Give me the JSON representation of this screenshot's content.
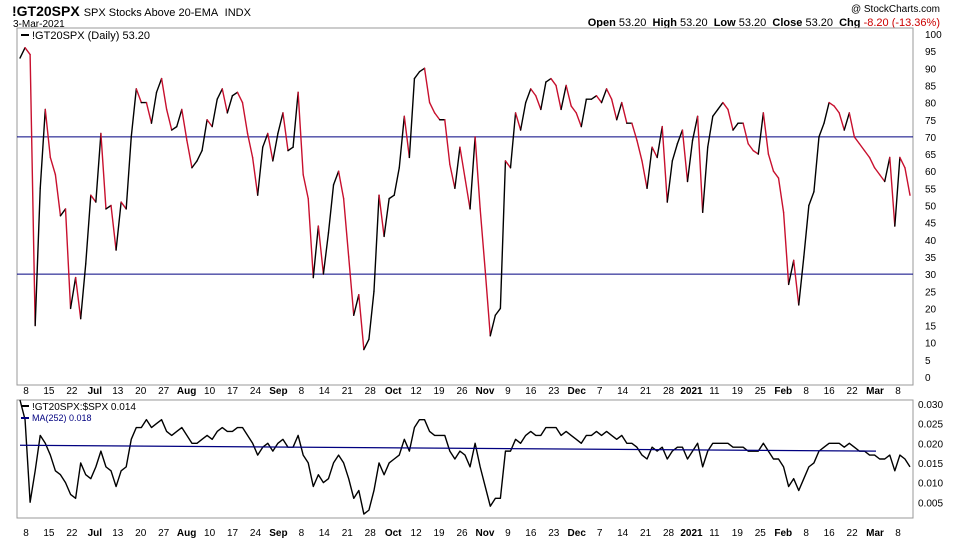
{
  "header": {
    "symbol": "!GT20SPX",
    "description": "SPX Stocks Above 20-EMA",
    "exchange": "INDX",
    "date": "3-Mar-2021",
    "copyright": "@ StockCharts.com",
    "open_label": "Open",
    "open_value": "53.20",
    "high_label": "High",
    "high_value": "53.20",
    "low_label": "Low",
    "low_value": "53.20",
    "close_label": "Close",
    "close_value": "53.20",
    "chg_label": "Chg",
    "chg_value": "-8.20 (-13.36%)",
    "chg_color": "#cc0000"
  },
  "chart_data": [
    {
      "type": "line",
      "legend": "!GT20SPX (Daily) 53.20",
      "ylim": [
        0,
        100
      ],
      "yticks": [
        0,
        5,
        10,
        15,
        20,
        25,
        30,
        35,
        40,
        45,
        50,
        55,
        60,
        65,
        70,
        75,
        80,
        85,
        90,
        95,
        100
      ],
      "reference_lines": [
        70,
        30
      ],
      "colors": {
        "up": "#000000",
        "down": "#c8102e",
        "reference": "#000080"
      },
      "x_tick_labels": [
        "8",
        "15",
        "22",
        "Jul",
        "13",
        "20",
        "27",
        "Aug",
        "10",
        "17",
        "24",
        "Sep",
        "8",
        "14",
        "21",
        "28",
        "Oct",
        "12",
        "19",
        "26",
        "Nov",
        "9",
        "16",
        "23",
        "Dec",
        "7",
        "14",
        "21",
        "28",
        "2021",
        "11",
        "19",
        "25",
        "Feb",
        "8",
        "16",
        "22",
        "Mar",
        "8"
      ],
      "x_label_bold": [
        "Jul",
        "Aug",
        "Sep",
        "Oct",
        "Nov",
        "Dec",
        "2021",
        "Feb",
        "Mar"
      ],
      "values": [
        93,
        96,
        94,
        15,
        55,
        78,
        64,
        59,
        47,
        49,
        20,
        29,
        17,
        33,
        53,
        51,
        71,
        49,
        50,
        37,
        51,
        49,
        70,
        84,
        80,
        80,
        74,
        83,
        87,
        78,
        72,
        73,
        78,
        69,
        61,
        63,
        66,
        75,
        73,
        81,
        84,
        77,
        82,
        83,
        80,
        71,
        64,
        53,
        67,
        71,
        63,
        71,
        77,
        66,
        67,
        83,
        59,
        52,
        29,
        44,
        30,
        42,
        56,
        60,
        52,
        35,
        18,
        24,
        8,
        11,
        25,
        53,
        41,
        52,
        53,
        61,
        76,
        64,
        87,
        89,
        90,
        80,
        77,
        75,
        75,
        62,
        55,
        67,
        58,
        49,
        70,
        49,
        31,
        12,
        18,
        20,
        63,
        61,
        77,
        72,
        80,
        84,
        82,
        78,
        86,
        87,
        85,
        78,
        85,
        79,
        77,
        73,
        81,
        81,
        82,
        80,
        84,
        81,
        75,
        80,
        74,
        74,
        69,
        63,
        55,
        67,
        64,
        73,
        51,
        63,
        68,
        72,
        57,
        69,
        76,
        48,
        67,
        76,
        78,
        80,
        78,
        72,
        74,
        74,
        68,
        66,
        65,
        77,
        65,
        60,
        58,
        48,
        27,
        34,
        21,
        35,
        50,
        54,
        70,
        74,
        80,
        79,
        77,
        72,
        77,
        70,
        68,
        66,
        64,
        61,
        59,
        57,
        64,
        44,
        64,
        61,
        53
      ]
    },
    {
      "type": "line",
      "series": [
        {
          "name": "!GT20SPX:$SPX 0.014",
          "color": "#000000",
          "values": [
            0.031,
            0.026,
            0.005,
            0.013,
            0.022,
            0.02,
            0.017,
            0.013,
            0.012,
            0.01,
            0.007,
            0.006,
            0.015,
            0.012,
            0.011,
            0.014,
            0.018,
            0.014,
            0.013,
            0.009,
            0.013,
            0.014,
            0.021,
            0.024,
            0.024,
            0.026,
            0.024,
            0.025,
            0.026,
            0.023,
            0.022,
            0.023,
            0.024,
            0.022,
            0.02,
            0.02,
            0.021,
            0.022,
            0.021,
            0.023,
            0.024,
            0.023,
            0.023,
            0.024,
            0.024,
            0.022,
            0.02,
            0.017,
            0.019,
            0.02,
            0.018,
            0.02,
            0.021,
            0.019,
            0.019,
            0.022,
            0.017,
            0.015,
            0.009,
            0.012,
            0.01,
            0.011,
            0.015,
            0.017,
            0.015,
            0.011,
            0.006,
            0.008,
            0.002,
            0.003,
            0.008,
            0.015,
            0.012,
            0.015,
            0.016,
            0.017,
            0.021,
            0.018,
            0.024,
            0.026,
            0.026,
            0.023,
            0.022,
            0.022,
            0.022,
            0.018,
            0.016,
            0.018,
            0.017,
            0.014,
            0.02,
            0.014,
            0.009,
            0.004,
            0.006,
            0.006,
            0.018,
            0.018,
            0.021,
            0.02,
            0.022,
            0.023,
            0.022,
            0.022,
            0.024,
            0.024,
            0.024,
            0.022,
            0.023,
            0.022,
            0.021,
            0.02,
            0.022,
            0.022,
            0.023,
            0.022,
            0.023,
            0.022,
            0.021,
            0.022,
            0.02,
            0.02,
            0.019,
            0.017,
            0.016,
            0.019,
            0.018,
            0.019,
            0.016,
            0.018,
            0.019,
            0.019,
            0.016,
            0.018,
            0.02,
            0.014,
            0.018,
            0.02,
            0.02,
            0.02,
            0.02,
            0.019,
            0.019,
            0.019,
            0.018,
            0.018,
            0.018,
            0.02,
            0.018,
            0.016,
            0.016,
            0.014,
            0.009,
            0.011,
            0.008,
            0.011,
            0.014,
            0.015,
            0.018,
            0.019,
            0.02,
            0.02,
            0.02,
            0.019,
            0.02,
            0.019,
            0.018,
            0.018,
            0.017,
            0.017,
            0.016,
            0.016,
            0.017,
            0.013,
            0.017,
            0.016,
            0.014
          ]
        },
        {
          "name": "MA(252) 0.018",
          "color": "#000080",
          "values": [
            0.0195,
            0.018
          ]
        }
      ],
      "ylim": [
        0.001,
        0.031
      ],
      "yticks": [
        0.005,
        0.01,
        0.015,
        0.02,
        0.025,
        0.03
      ],
      "ytick_labels": [
        "0.005",
        "0.010",
        "0.015",
        "0.020",
        "0.025",
        "0.030"
      ]
    }
  ]
}
